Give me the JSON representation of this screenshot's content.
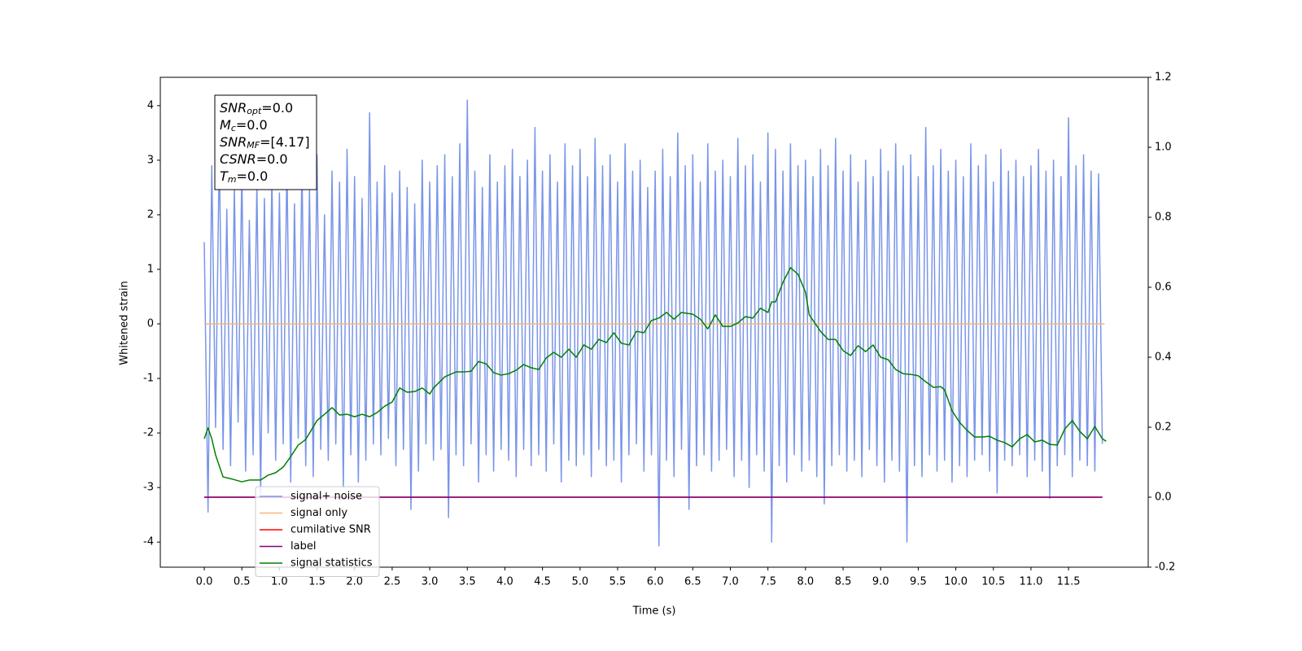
{
  "chart_data": {
    "type": "line",
    "xlabel": "Time (s)",
    "ylabel": "Whitened strain",
    "xlim": [
      -0.585,
      12.56
    ],
    "ylim": [
      -4.46,
      4.52
    ],
    "y2lim": [
      -0.2,
      1.2
    ],
    "xticks": [
      {
        "value": 0,
        "label": "0.0"
      },
      0.5,
      {
        "value": 1,
        "label": "1.0"
      },
      1.5,
      {
        "value": 2,
        "label": "2.0"
      },
      2.5,
      {
        "value": 3,
        "label": "3.0"
      },
      3.5,
      {
        "value": 4,
        "label": "4.0"
      },
      4.5,
      {
        "value": 5,
        "label": "5.0"
      },
      5.5,
      {
        "value": 6,
        "label": "6.0"
      },
      6.5,
      {
        "value": 7,
        "label": "7.0"
      },
      7.5,
      {
        "value": 8,
        "label": "8.0"
      },
      8.5,
      {
        "value": 9,
        "label": "9.0"
      },
      9.5,
      {
        "value": 10,
        "label": "10.0"
      },
      10.5,
      {
        "value": 11,
        "label": "11.0"
      },
      11.5
    ],
    "yticks": [
      -4,
      -3,
      -2,
      -1,
      0,
      1,
      2,
      3,
      4
    ],
    "y2ticks": [
      -0.2,
      {
        "value": 0,
        "label": "0.0"
      },
      0.2,
      0.4,
      0.6,
      0.8,
      {
        "value": 1,
        "label": "1.0"
      },
      1.2
    ],
    "legend": "lower left",
    "annotations": [
      {
        "symbol": "SNR",
        "subscript": "opt",
        "text": "=0.0"
      },
      {
        "symbol": "M",
        "subscript": "c",
        "text": "=0.0"
      },
      {
        "symbol": "SNR",
        "subscript": "MF",
        "text": "=[4.17]"
      },
      {
        "symbol": "CSNR",
        "subscript": null,
        "text": "=0.0"
      },
      {
        "symbol": "T",
        "subscript": "m",
        "text": "=0.0"
      }
    ],
    "series": [
      {
        "name": "signal+ noise",
        "color": "#7a95e8",
        "axis": "y",
        "x": [
          0,
          0.05,
          0.1,
          0.15,
          0.2,
          0.25,
          0.3,
          0.35,
          0.4,
          0.45,
          0.5,
          0.55,
          0.6,
          0.65,
          0.7,
          0.75,
          0.8,
          0.85,
          0.9,
          0.95,
          1,
          1.05,
          1.1,
          1.15,
          1.2,
          1.25,
          1.3,
          1.35,
          1.4,
          1.45,
          1.5,
          1.55,
          1.6,
          1.65,
          1.7,
          1.75,
          1.8,
          1.85,
          1.9,
          1.95,
          2,
          2.05,
          2.1,
          2.15,
          2.2,
          2.25,
          2.3,
          2.35,
          2.4,
          2.45,
          2.5,
          2.55,
          2.6,
          2.65,
          2.7,
          2.75,
          2.8,
          2.85,
          2.9,
          2.95,
          3,
          3.05,
          3.1,
          3.15,
          3.2,
          3.25,
          3.3,
          3.35,
          3.4,
          3.45,
          3.5,
          3.55,
          3.6,
          3.65,
          3.7,
          3.75,
          3.8,
          3.85,
          3.9,
          3.95,
          4,
          4.05,
          4.1,
          4.15,
          4.2,
          4.25,
          4.3,
          4.35,
          4.4,
          4.45,
          4.5,
          4.55,
          4.6,
          4.65,
          4.7,
          4.75,
          4.8,
          4.85,
          4.9,
          4.95,
          5,
          5.05,
          5.1,
          5.15,
          5.2,
          5.25,
          5.3,
          5.35,
          5.4,
          5.45,
          5.5,
          5.55,
          5.6,
          5.65,
          5.7,
          5.75,
          5.8,
          5.85,
          5.9,
          5.95,
          6,
          6.05,
          6.1,
          6.15,
          6.2,
          6.25,
          6.3,
          6.35,
          6.4,
          6.45,
          6.5,
          6.55,
          6.6,
          6.65,
          6.7,
          6.75,
          6.8,
          6.85,
          6.9,
          6.95,
          7,
          7.05,
          7.1,
          7.15,
          7.2,
          7.25,
          7.3,
          7.35,
          7.4,
          7.45,
          7.5,
          7.55,
          7.6,
          7.65,
          7.7,
          7.75,
          7.8,
          7.85,
          7.9,
          7.95,
          8,
          8.05,
          8.1,
          8.15,
          8.2,
          8.25,
          8.3,
          8.35,
          8.4,
          8.45,
          8.5,
          8.55,
          8.6,
          8.65,
          8.7,
          8.75,
          8.8,
          8.85,
          8.9,
          8.95,
          9,
          9.05,
          9.1,
          9.15,
          9.2,
          9.25,
          9.3,
          9.35,
          9.4,
          9.45,
          9.5,
          9.55,
          9.6,
          9.65,
          9.7,
          9.75,
          9.8,
          9.85,
          9.9,
          9.95,
          10,
          10.05,
          10.1,
          10.15,
          10.2,
          10.25,
          10.3,
          10.35,
          10.4,
          10.45,
          10.5,
          10.55,
          10.6,
          10.65,
          10.7,
          10.75,
          10.8,
          10.85,
          10.9,
          10.95,
          11,
          11.05,
          11.1,
          11.15,
          11.2,
          11.25,
          11.3,
          11.35,
          11.4,
          11.45,
          11.5,
          11.55,
          11.6,
          11.65,
          11.7,
          11.75,
          11.8,
          11.85,
          11.9,
          11.95
        ],
        "values": [
          1.5,
          -3.45,
          2.9,
          -1.9,
          3.2,
          -2.3,
          2.1,
          -2.6,
          2.5,
          -1.8,
          2.8,
          -2.7,
          1.9,
          -2.4,
          2.6,
          -3.1,
          2.3,
          -2.0,
          2.7,
          -2.5,
          2.4,
          -2.2,
          3.0,
          -2.9,
          2.2,
          -2.1,
          2.9,
          -2.6,
          2.5,
          -2.8,
          3.1,
          -2.3,
          2.0,
          -2.5,
          2.8,
          -2.2,
          2.6,
          -3.0,
          3.2,
          -2.4,
          2.7,
          -2.9,
          2.3,
          -2.5,
          3.87,
          -2.2,
          2.6,
          -2.4,
          2.9,
          -2.1,
          2.4,
          -2.6,
          2.8,
          -2.3,
          2.5,
          -3.4,
          2.2,
          -2.7,
          3.0,
          -2.2,
          2.6,
          -2.5,
          2.9,
          -2.3,
          3.1,
          -3.55,
          2.7,
          -2.4,
          3.3,
          -2.6,
          4.1,
          -2.2,
          2.8,
          -2.9,
          2.5,
          -2.4,
          3.1,
          -2.7,
          2.6,
          -2.3,
          2.9,
          -2.5,
          3.2,
          -2.8,
          2.7,
          -2.3,
          3.0,
          -2.6,
          3.6,
          -2.4,
          2.8,
          -2.7,
          3.1,
          -2.2,
          2.6,
          -2.9,
          3.3,
          -2.5,
          2.9,
          -2.6,
          3.2,
          -2.4,
          2.7,
          -2.8,
          3.4,
          -2.3,
          2.9,
          -2.6,
          3.1,
          -2.5,
          2.6,
          -2.9,
          3.3,
          -2.4,
          2.8,
          -2.2,
          3.0,
          -2.7,
          2.5,
          -2.4,
          2.8,
          -4.07,
          3.2,
          -2.5,
          2.7,
          -2.8,
          3.5,
          -2.3,
          2.9,
          -3.4,
          3.1,
          -2.6,
          2.6,
          -2.4,
          3.3,
          -2.7,
          2.8,
          -2.5,
          3.0,
          -2.3,
          2.7,
          -2.8,
          3.4,
          -2.5,
          2.9,
          -3.0,
          3.1,
          -2.4,
          2.6,
          -2.7,
          3.5,
          -4.0,
          3.2,
          -2.6,
          2.8,
          -2.9,
          3.3,
          -2.4,
          2.9,
          -2.7,
          3.0,
          -2.5,
          2.7,
          -2.8,
          3.2,
          -3.3,
          2.9,
          -2.6,
          3.4,
          -2.4,
          2.8,
          -2.7,
          3.1,
          -2.5,
          2.6,
          -2.8,
          3.0,
          -2.3,
          2.7,
          -2.6,
          3.2,
          -2.9,
          2.8,
          -2.5,
          3.3,
          -2.7,
          2.9,
          -4.0,
          3.1,
          -2.6,
          2.7,
          -2.8,
          3.6,
          -2.4,
          2.9,
          -2.7,
          3.2,
          -2.5,
          2.8,
          -2.9,
          3.0,
          -2.6,
          2.7,
          -2.8,
          3.3,
          -2.5,
          2.9,
          -2.4,
          3.1,
          -2.7,
          2.6,
          -3.1,
          3.2,
          -2.5,
          2.8,
          -2.6,
          3.0,
          -2.4,
          2.7,
          -2.8,
          2.9,
          -2.5,
          3.2,
          -2.7,
          2.8,
          -3.2,
          3.0,
          -2.6,
          2.7,
          -2.4,
          3.78,
          -2.8,
          2.9,
          -2.5,
          3.1,
          -2.6,
          2.8,
          -2.7,
          2.75,
          -2.2
        ]
      },
      {
        "name": "signal only",
        "color": "#f5b87a",
        "axis": "y",
        "x": [
          0,
          11.98
        ],
        "values": [
          0,
          0
        ]
      },
      {
        "name": "cumilative SNR",
        "color": "#ff0000",
        "axis": "y2",
        "x": [
          0,
          11.95
        ],
        "values": [
          0,
          0
        ]
      },
      {
        "name": "label",
        "color": "#800080",
        "axis": "y2",
        "x": [
          0,
          11.95
        ],
        "values": [
          0,
          0
        ]
      },
      {
        "name": "signal statistics",
        "color": "#008000",
        "axis": "y2",
        "x": [
          0,
          0.05,
          0.1,
          0.15,
          0.25,
          0.35,
          0.5,
          0.6,
          0.75,
          0.85,
          0.95,
          1.05,
          1.15,
          1.25,
          1.35,
          1.5,
          1.6,
          1.7,
          1.8,
          1.9,
          2.0,
          2.1,
          2.2,
          2.3,
          2.4,
          2.5,
          2.6,
          2.7,
          2.8,
          2.9,
          3.0,
          3.05,
          3.2,
          3.35,
          3.45,
          3.55,
          3.65,
          3.75,
          3.85,
          3.95,
          4.05,
          4.15,
          4.25,
          4.35,
          4.45,
          4.55,
          4.65,
          4.75,
          4.85,
          4.95,
          5.05,
          5.15,
          5.25,
          5.35,
          5.45,
          5.55,
          5.65,
          5.75,
          5.85,
          5.95,
          6.05,
          6.15,
          6.25,
          6.35,
          6.5,
          6.6,
          6.7,
          6.8,
          6.9,
          7.0,
          7.1,
          7.2,
          7.3,
          7.4,
          7.5,
          7.55,
          7.6,
          7.7,
          7.8,
          7.9,
          8.0,
          8.05,
          8.2,
          8.3,
          8.4,
          8.5,
          8.6,
          8.7,
          8.8,
          8.9,
          9.0,
          9.1,
          9.2,
          9.3,
          9.4,
          9.5,
          9.6,
          9.7,
          9.8,
          9.85,
          9.95,
          10.05,
          10.15,
          10.25,
          10.35,
          10.45,
          10.55,
          10.65,
          10.75,
          10.85,
          10.95,
          11.05,
          11.15,
          11.25,
          11.35,
          11.45,
          11.55,
          11.65,
          11.75,
          11.85,
          11.95,
          12.0
        ],
        "values": [
          0.167,
          0.198,
          0.167,
          0.121,
          0.058,
          0.053,
          0.044,
          0.049,
          0.049,
          0.063,
          0.07,
          0.086,
          0.116,
          0.149,
          0.165,
          0.219,
          0.237,
          0.256,
          0.235,
          0.237,
          0.23,
          0.237,
          0.23,
          0.242,
          0.26,
          0.272,
          0.312,
          0.3,
          0.302,
          0.312,
          0.295,
          0.312,
          0.344,
          0.358,
          0.358,
          0.36,
          0.388,
          0.381,
          0.356,
          0.349,
          0.353,
          0.363,
          0.379,
          0.37,
          0.365,
          0.398,
          0.414,
          0.4,
          0.423,
          0.4,
          0.435,
          0.423,
          0.451,
          0.442,
          0.47,
          0.44,
          0.435,
          0.474,
          0.47,
          0.505,
          0.512,
          0.528,
          0.509,
          0.528,
          0.523,
          0.509,
          0.481,
          0.521,
          0.488,
          0.488,
          0.498,
          0.516,
          0.512,
          0.54,
          0.528,
          0.558,
          0.558,
          0.614,
          0.656,
          0.637,
          0.586,
          0.521,
          0.474,
          0.451,
          0.451,
          0.419,
          0.405,
          0.433,
          0.416,
          0.435,
          0.4,
          0.393,
          0.365,
          0.353,
          0.351,
          0.347,
          0.33,
          0.314,
          0.316,
          0.307,
          0.247,
          0.214,
          0.191,
          0.172,
          0.172,
          0.174,
          0.163,
          0.156,
          0.144,
          0.167,
          0.179,
          0.158,
          0.163,
          0.151,
          0.149,
          0.195,
          0.219,
          0.188,
          0.167,
          0.202,
          0.167,
          0.16
        ]
      }
    ]
  }
}
